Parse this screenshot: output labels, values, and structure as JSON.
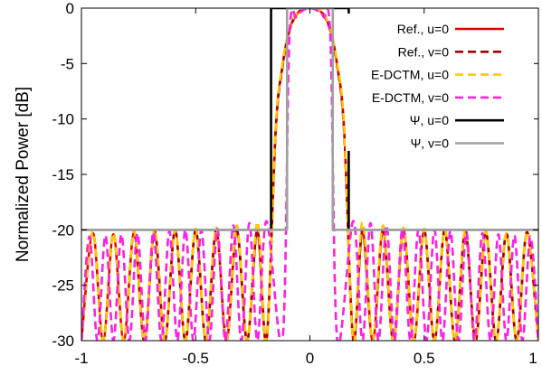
{
  "chart_data": {
    "type": "line",
    "title": "",
    "xlabel": "",
    "ylabel": "Normalized Power [dB]",
    "xlim": [
      -1,
      1
    ],
    "ylim": [
      -30,
      0
    ],
    "x_ticks": [
      "-1",
      "-0.5",
      "0",
      "0.5",
      "1"
    ],
    "y_ticks": [
      "0",
      "-5",
      "-10",
      "-15",
      "-20",
      "-25",
      "-30"
    ],
    "grid": false,
    "legend_position": "top-right",
    "series": [
      {
        "name": "Ref., u=0",
        "color": "#e00000",
        "dash": "solid",
        "x": [
          -1.0,
          -0.95,
          -0.905,
          -0.86,
          -0.815,
          -0.77,
          -0.725,
          -0.68,
          -0.635,
          -0.59,
          -0.545,
          -0.5,
          -0.455,
          -0.41,
          -0.365,
          -0.32,
          -0.275,
          -0.23,
          -0.19,
          -0.15,
          -0.12,
          -0.09,
          -0.06,
          -0.03,
          0.0,
          0.03,
          0.06,
          0.09,
          0.12,
          0.15,
          0.19,
          0.23,
          0.275,
          0.32,
          0.365,
          0.41,
          0.455,
          0.5,
          0.545,
          0.59,
          0.635,
          0.68,
          0.725,
          0.77,
          0.815,
          0.86,
          0.905,
          0.95,
          1.0
        ],
        "y": [
          -30,
          -20.3,
          -30,
          -20.4,
          -30,
          -20.3,
          -30,
          -20.2,
          -30,
          -20.1,
          -30,
          -20.1,
          -30,
          -20.1,
          -30,
          -20.0,
          -30,
          -20.1,
          -30,
          -11.0,
          -5.2,
          -2.0,
          -0.6,
          -0.1,
          0.0,
          -0.1,
          -0.6,
          -2.0,
          -5.2,
          -11.0,
          -30,
          -20.1,
          -30,
          -20.0,
          -30,
          -20.1,
          -30,
          -20.1,
          -30,
          -20.1,
          -30,
          -20.2,
          -30,
          -20.3,
          -30,
          -20.4,
          -30,
          -20.3,
          -30
        ]
      },
      {
        "name": "Ref., v=0",
        "color": "#a00000",
        "dash": "dashed",
        "x": [
          -1.0,
          -0.95,
          -0.905,
          -0.86,
          -0.815,
          -0.77,
          -0.725,
          -0.68,
          -0.635,
          -0.59,
          -0.545,
          -0.5,
          -0.455,
          -0.41,
          -0.365,
          -0.32,
          -0.275,
          -0.23,
          -0.19,
          -0.15,
          -0.12,
          -0.09,
          -0.06,
          -0.03,
          0.0,
          0.03,
          0.06,
          0.09,
          0.12,
          0.15,
          0.19,
          0.23,
          0.275,
          0.32,
          0.365,
          0.41,
          0.455,
          0.5,
          0.545,
          0.59,
          0.635,
          0.68,
          0.725,
          0.77,
          0.815,
          0.86,
          0.905,
          0.95,
          1.0
        ],
        "y": [
          -30,
          -20.2,
          -30,
          -20.3,
          -30,
          -20.2,
          -30,
          -20.1,
          -30,
          -20.0,
          -30,
          -20.0,
          -30,
          -20.0,
          -30,
          -20.0,
          -30,
          -20.0,
          -30,
          -11.2,
          -5.3,
          -2.1,
          -0.6,
          -0.1,
          0.0,
          -0.1,
          -0.6,
          -2.1,
          -5.3,
          -11.2,
          -30,
          -20.0,
          -30,
          -20.0,
          -30,
          -20.0,
          -30,
          -20.0,
          -30,
          -20.0,
          -30,
          -20.1,
          -30,
          -20.2,
          -30,
          -20.3,
          -30,
          -20.2,
          -30
        ]
      },
      {
        "name": "E-DCTM, u=0",
        "color": "#ffc800",
        "dash": "dashed",
        "x": [
          -1.0,
          -0.95,
          -0.905,
          -0.86,
          -0.815,
          -0.77,
          -0.725,
          -0.68,
          -0.635,
          -0.59,
          -0.545,
          -0.5,
          -0.455,
          -0.41,
          -0.365,
          -0.32,
          -0.275,
          -0.23,
          -0.19,
          -0.15,
          -0.12,
          -0.09,
          -0.06,
          -0.03,
          0.0,
          0.03,
          0.06,
          0.09,
          0.12,
          0.15,
          0.19,
          0.23,
          0.275,
          0.32,
          0.365,
          0.41,
          0.455,
          0.5,
          0.545,
          0.59,
          0.635,
          0.68,
          0.725,
          0.77,
          0.815,
          0.86,
          0.905,
          0.95,
          1.0
        ],
        "y": [
          -30,
          -20.2,
          -30,
          -20.3,
          -30,
          -20.1,
          -30,
          -20.0,
          -30,
          -20.0,
          -30,
          -19.9,
          -30,
          -19.8,
          -30,
          -19.6,
          -30,
          -19.3,
          -30,
          -10.8,
          -5.0,
          -1.9,
          -0.5,
          -0.1,
          0.0,
          -0.1,
          -0.5,
          -1.9,
          -5.0,
          -10.8,
          -30,
          -19.3,
          -30,
          -19.6,
          -30,
          -19.8,
          -30,
          -19.9,
          -30,
          -20.0,
          -30,
          -20.0,
          -30,
          -20.1,
          -30,
          -20.3,
          -30,
          -20.2,
          -30
        ]
      },
      {
        "name": "E-DCTM, v=0",
        "color": "#ff20e0",
        "dash": "dashed",
        "x": [
          -1.0,
          -0.965,
          -0.93,
          -0.895,
          -0.86,
          -0.825,
          -0.79,
          -0.755,
          -0.72,
          -0.685,
          -0.65,
          -0.615,
          -0.58,
          -0.545,
          -0.51,
          -0.475,
          -0.44,
          -0.405,
          -0.37,
          -0.335,
          -0.3,
          -0.265,
          -0.23,
          -0.19,
          -0.12,
          -0.09,
          -0.06,
          -0.03,
          0.0,
          0.03,
          0.06,
          0.09,
          0.12,
          0.19,
          0.23,
          0.265,
          0.3,
          0.335,
          0.37,
          0.405,
          0.44,
          0.475,
          0.51,
          0.545,
          0.58,
          0.615,
          0.65,
          0.685,
          0.72,
          0.755,
          0.79,
          0.825,
          0.86,
          0.895,
          0.93,
          0.965,
          1.0
        ],
        "y": [
          -30,
          -20.6,
          -30,
          -20.5,
          -30,
          -20.4,
          -30,
          -20.3,
          -30,
          -20.2,
          -30,
          -20.1,
          -30,
          -20.0,
          -30,
          -20.0,
          -30,
          -19.9,
          -30,
          -19.6,
          -30,
          -19.4,
          -30,
          -19.2,
          -30,
          -2.8,
          -0.8,
          -0.2,
          0.0,
          -0.2,
          -0.8,
          -2.8,
          -30,
          -19.2,
          -30,
          -19.4,
          -30,
          -19.6,
          -30,
          -19.9,
          -30,
          -20.0,
          -30,
          -20.0,
          -30,
          -20.1,
          -30,
          -20.2,
          -30,
          -20.3,
          -30,
          -20.4,
          -30,
          -20.5,
          -30,
          -20.6,
          -30
        ]
      },
      {
        "name": "Ψ, u=0",
        "color": "#000000",
        "dash": "solid",
        "x": [
          -1.0,
          -0.17,
          -0.17,
          0.17,
          0.17,
          1.0
        ],
        "y": [
          -20,
          -20,
          0,
          0,
          -20,
          -20
        ]
      },
      {
        "name": "Ψ, v=0",
        "color": "#a0a0a0",
        "dash": "solid",
        "x": [
          -1.0,
          -0.1,
          -0.1,
          0.1,
          0.1,
          1.0
        ],
        "y": [
          -20,
          -20,
          0,
          0,
          -20,
          -20
        ]
      }
    ]
  }
}
